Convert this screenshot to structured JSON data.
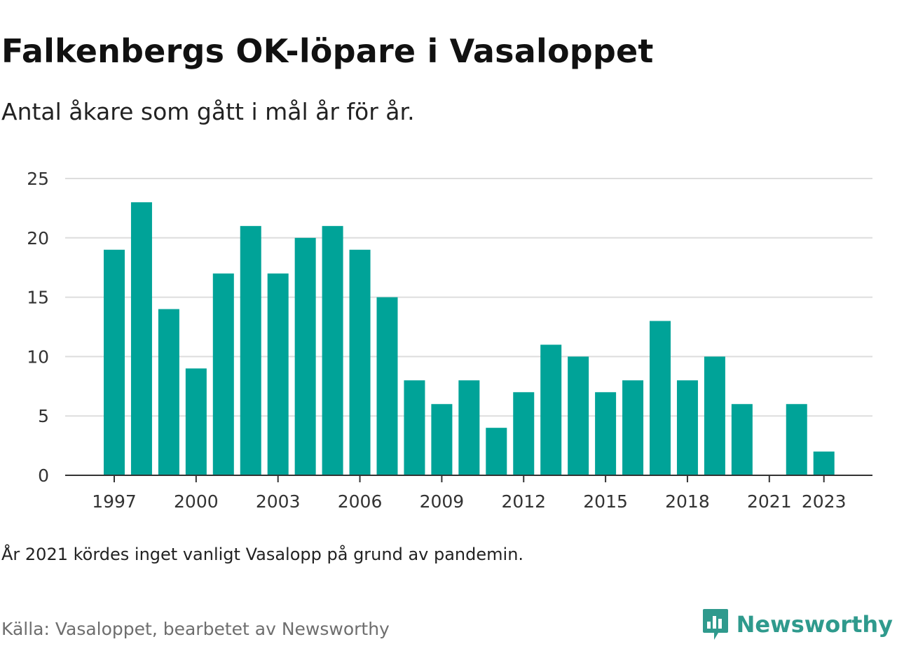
{
  "title": "Falkenbergs OK-löpare i Vasaloppet",
  "subtitle": "Antal åkare som gått i mål år för år.",
  "note": "År 2021 kördes inget vanligt Vasalopp på grund av pandemin.",
  "source": "Källa: Vasaloppet, bearbetet av Newsworthy",
  "brand": {
    "name": "Newsworthy",
    "logo_icon": "newsworthy-logo-icon",
    "color": "#2f9a8d"
  },
  "colors": {
    "bar": "#00a398",
    "grid": "#dddddd",
    "axis": "#333333"
  },
  "chart_data": {
    "type": "bar",
    "x": [
      1997,
      1998,
      1999,
      2000,
      2001,
      2002,
      2003,
      2004,
      2005,
      2006,
      2007,
      2008,
      2009,
      2010,
      2011,
      2012,
      2013,
      2014,
      2015,
      2016,
      2017,
      2018,
      2019,
      2020,
      2021,
      2022,
      2023
    ],
    "values": [
      19,
      23,
      14,
      9,
      17,
      21,
      17,
      20,
      21,
      19,
      15,
      8,
      6,
      8,
      4,
      7,
      11,
      10,
      7,
      8,
      13,
      8,
      10,
      6,
      0,
      6,
      2
    ],
    "x_ticks": [
      "1997",
      "2000",
      "2003",
      "2006",
      "2009",
      "2012",
      "2015",
      "2018",
      "2021",
      "2023"
    ],
    "y_ticks": [
      "0",
      "5",
      "10",
      "15",
      "20",
      "25"
    ],
    "ylim": [
      0,
      25
    ],
    "grid": true,
    "legend": "none"
  }
}
